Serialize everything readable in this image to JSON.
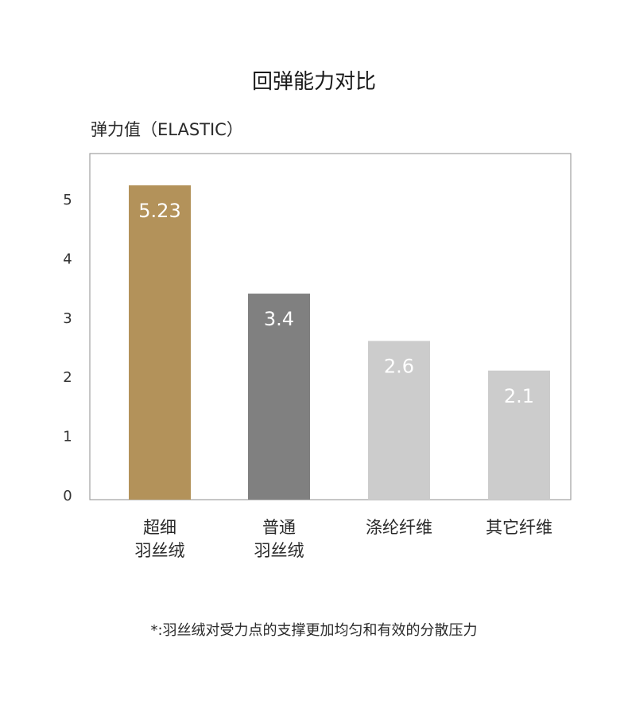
{
  "title": "回弹能力对比",
  "footnote": "*:羽丝绒对受力点的支撑更加均匀和有效的分散压力",
  "chart_data": {
    "type": "bar",
    "title": "回弹能力对比",
    "ylabel": "弹力值（ELASTIC）",
    "xlabel": "",
    "ylim": [
      0,
      5.6
    ],
    "yticks": [
      0,
      1,
      2,
      3,
      4,
      5
    ],
    "grid": false,
    "categories": [
      [
        "超细",
        "羽丝绒"
      ],
      [
        "普通",
        "羽丝绒"
      ],
      [
        "涤纶纤维"
      ],
      [
        "其它纤维"
      ]
    ],
    "values": [
      5.23,
      3.4,
      2.6,
      2.1
    ],
    "data_labels": [
      "5.23",
      "3.4",
      "2.6",
      "2.1"
    ],
    "colors": [
      "#b3925a",
      "#808080",
      "#cccccc",
      "#cccccc"
    ],
    "label_color": "#ffffff",
    "frame_color": "#a0a0a0"
  }
}
